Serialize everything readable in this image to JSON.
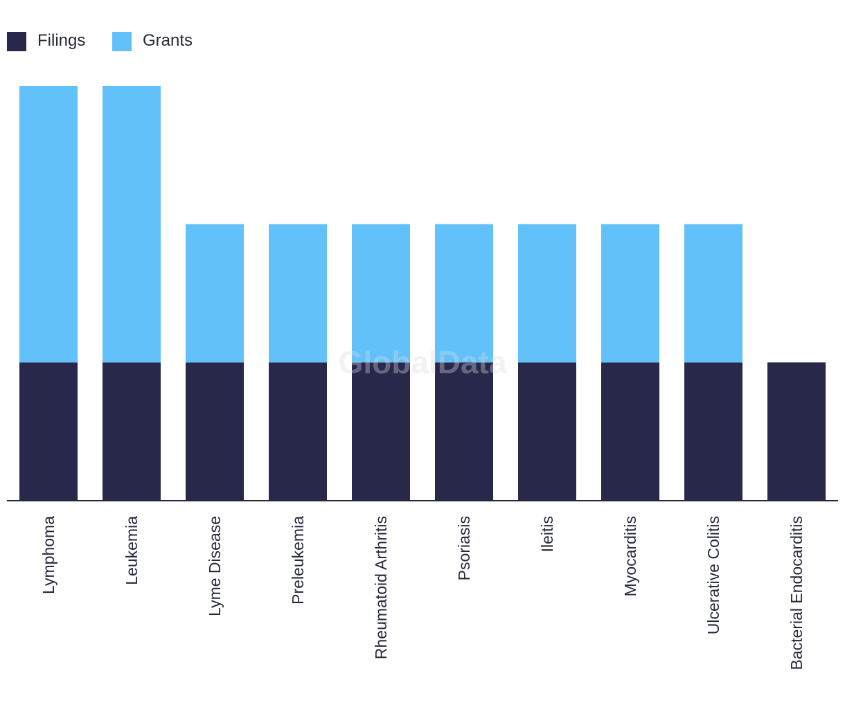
{
  "chart_data": {
    "type": "bar",
    "stacked": true,
    "categories": [
      "Lymphoma",
      "Leukemia",
      "Lyme Disease",
      "Preleukemia",
      "Rheumatoid Arthritis",
      "Psoriasis",
      "Ileitis",
      "Myocarditis",
      "Ulcerative Colitis",
      "Bacterial Endocarditis"
    ],
    "series": [
      {
        "name": "Filings",
        "color": "#27284a",
        "values": [
          1,
          1,
          1,
          1,
          1,
          1,
          1,
          1,
          1,
          1
        ]
      },
      {
        "name": "Grants",
        "color": "#62c1f8",
        "values": [
          2,
          2,
          1,
          1,
          1,
          1,
          1,
          1,
          1,
          0
        ]
      }
    ],
    "ylim": [
      0,
      3
    ],
    "grid": false,
    "legend_position": "top-left",
    "watermark": "GlobalData"
  }
}
